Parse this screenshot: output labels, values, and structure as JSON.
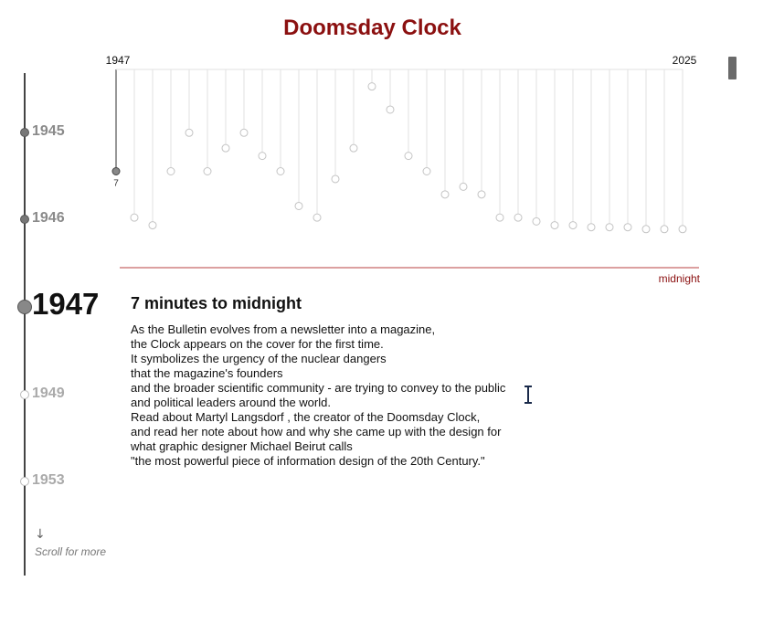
{
  "page": {
    "title": "Doomsday Clock"
  },
  "timeline": {
    "years": [
      {
        "label": "1945",
        "state": "past"
      },
      {
        "label": "1946",
        "state": "past"
      },
      {
        "label": "1947",
        "state": "current"
      },
      {
        "label": "1949",
        "state": "future"
      },
      {
        "label": "1953",
        "state": "future"
      }
    ],
    "scroll_hint": {
      "arrow": "↓",
      "text": "Scroll for more"
    }
  },
  "chart_data": {
    "type": "scatter",
    "title": "",
    "x_start_label": "1947",
    "x_end_label": "2025",
    "baseline_label": "midnight",
    "highlight_index": 0,
    "highlight_value_label": "7",
    "values": [
      7,
      5.8,
      5.6,
      7,
      8,
      7,
      7.6,
      8,
      7.4,
      7,
      6.1,
      5.8,
      6.8,
      7.6,
      9.2,
      8.6,
      7.4,
      7,
      6.4,
      6.6,
      6.4,
      5.8,
      5.8,
      5.7,
      5.6,
      5.6,
      5.55,
      5.55,
      5.55,
      5.5,
      5.5,
      5.5
    ],
    "ylim": [
      4.5,
      9.5
    ]
  },
  "content": {
    "heading": "7 minutes to midnight",
    "lines": [
      "As the Bulletin evolves from a newsletter into a magazine,",
      "the Clock appears on the cover for the first time.",
      "It symbolizes the urgency of the nuclear dangers",
      "that the magazine's founders",
      "and the broader scientific community - are trying to convey to the public",
      "and political leaders around the world.",
      "Read about Martyl Langsdorf , the creator of the Doomsday Clock,",
      "and read her note about how and why she came up with the design for",
      "what graphic designer Michael Beirut calls",
      "\"the most powerful piece of information design of the 20th Century.\""
    ]
  },
  "colors": {
    "title": "#8b1010",
    "midnight_line": "#d08080",
    "midnight_label": "#8b1010"
  }
}
